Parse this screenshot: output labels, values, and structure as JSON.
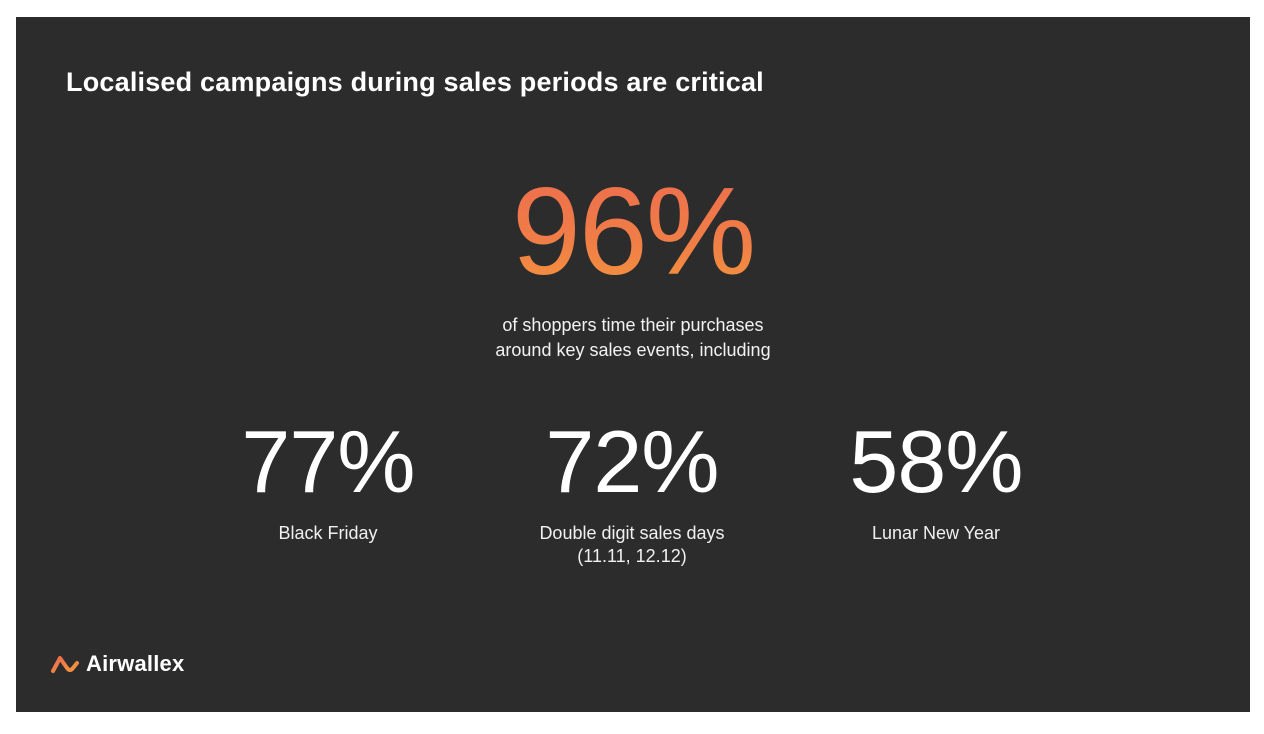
{
  "slide": {
    "title": "Localised campaigns during sales periods are critical",
    "hero": {
      "value": "96%",
      "caption_line1": "of shoppers time their purchases",
      "caption_line2": "around key sales events, including"
    },
    "stats": [
      {
        "value": "77%",
        "label_line1": "Black Friday",
        "label_line2": ""
      },
      {
        "value": "72%",
        "label_line1": "Double digit sales days",
        "label_line2": "(11.11, 12.12)"
      },
      {
        "value": "58%",
        "label_line1": "Lunar New Year",
        "label_line2": ""
      }
    ],
    "brand": {
      "name": "Airwallex",
      "icon": "airwallex-logo-icon"
    },
    "colors": {
      "background": "#2c2c2c",
      "accent_start": "#ec6a4f",
      "accent_end": "#f49a3a",
      "text": "#ffffff"
    }
  }
}
